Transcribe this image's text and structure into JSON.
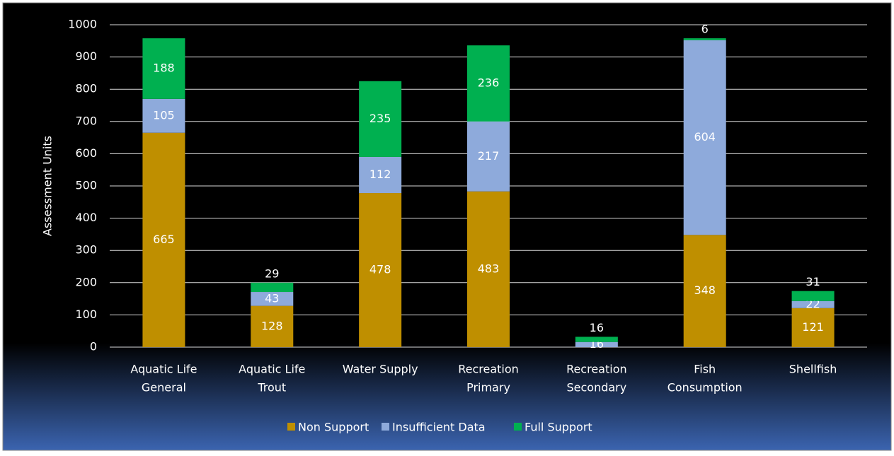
{
  "chart_data": {
    "type": "stacked_bar",
    "y_label": "Assessment Units",
    "categories": [
      [
        "Aquatic Life",
        "General"
      ],
      [
        "Aquatic Life",
        "Trout"
      ],
      [
        "Water Supply"
      ],
      [
        "Recreation",
        "Primary"
      ],
      [
        "Recreation",
        "Secondary"
      ],
      [
        "Fish",
        "Consumption"
      ],
      [
        "Shellfish"
      ]
    ],
    "series": [
      {
        "name": "Non Support",
        "color": "#bf8f00",
        "values": [
          665,
          128,
          478,
          483,
          0,
          348,
          121
        ]
      },
      {
        "name": "Insufficient Data",
        "color": "#8eaadb",
        "values": [
          105,
          43,
          112,
          217,
          16,
          604,
          22
        ]
      },
      {
        "name": "Full Support",
        "color": "#00b050",
        "values": [
          188,
          29,
          235,
          236,
          16,
          6,
          31
        ]
      }
    ],
    "ylim": [
      0,
      1000
    ],
    "yticks": [
      0,
      100,
      200,
      300,
      400,
      500,
      600,
      700,
      800,
      900,
      1000
    ],
    "grid": true,
    "legend": "bottom"
  }
}
